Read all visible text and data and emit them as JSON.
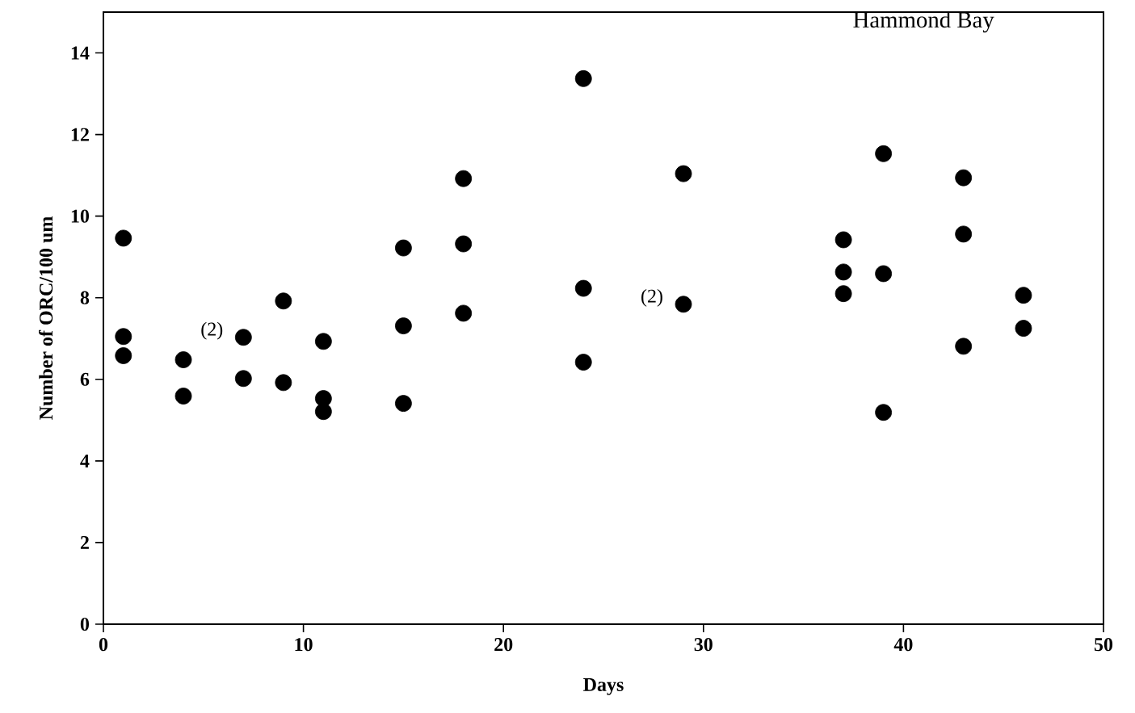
{
  "chart_data": {
    "type": "scatter",
    "title": "Hammond Bay",
    "xlabel": "Days",
    "ylabel": "Number of ORC/100 um",
    "x": [
      1,
      1,
      1,
      4,
      4,
      7,
      7,
      9,
      9,
      11,
      11,
      11,
      15,
      15,
      15,
      18,
      18,
      18,
      24,
      24,
      24,
      29,
      29,
      37,
      37,
      37,
      39,
      39,
      39,
      43,
      43,
      43,
      46,
      46
    ],
    "values": [
      9.46,
      7.05,
      6.58,
      6.48,
      5.59,
      7.03,
      6.02,
      7.92,
      5.92,
      6.93,
      5.53,
      5.21,
      9.22,
      7.31,
      5.41,
      10.92,
      9.32,
      7.62,
      13.37,
      8.23,
      6.42,
      11.04,
      7.84,
      9.42,
      8.63,
      8.1,
      11.53,
      8.59,
      5.19,
      10.94,
      9.56,
      6.81,
      8.06,
      7.25
    ],
    "color": "#000000",
    "marker": "circle",
    "grid": false,
    "xlim": [
      0,
      50
    ],
    "ylim": [
      0,
      15
    ],
    "xticks": [
      0,
      10,
      20,
      30,
      40,
      50
    ],
    "yticks": [
      0,
      2,
      4,
      6,
      8,
      10,
      12,
      14
    ],
    "annotations": [
      {
        "text": "(2)",
        "x": 7,
        "y": 7.03
      },
      {
        "text": "(2)",
        "x": 29,
        "y": 7.84
      }
    ]
  }
}
